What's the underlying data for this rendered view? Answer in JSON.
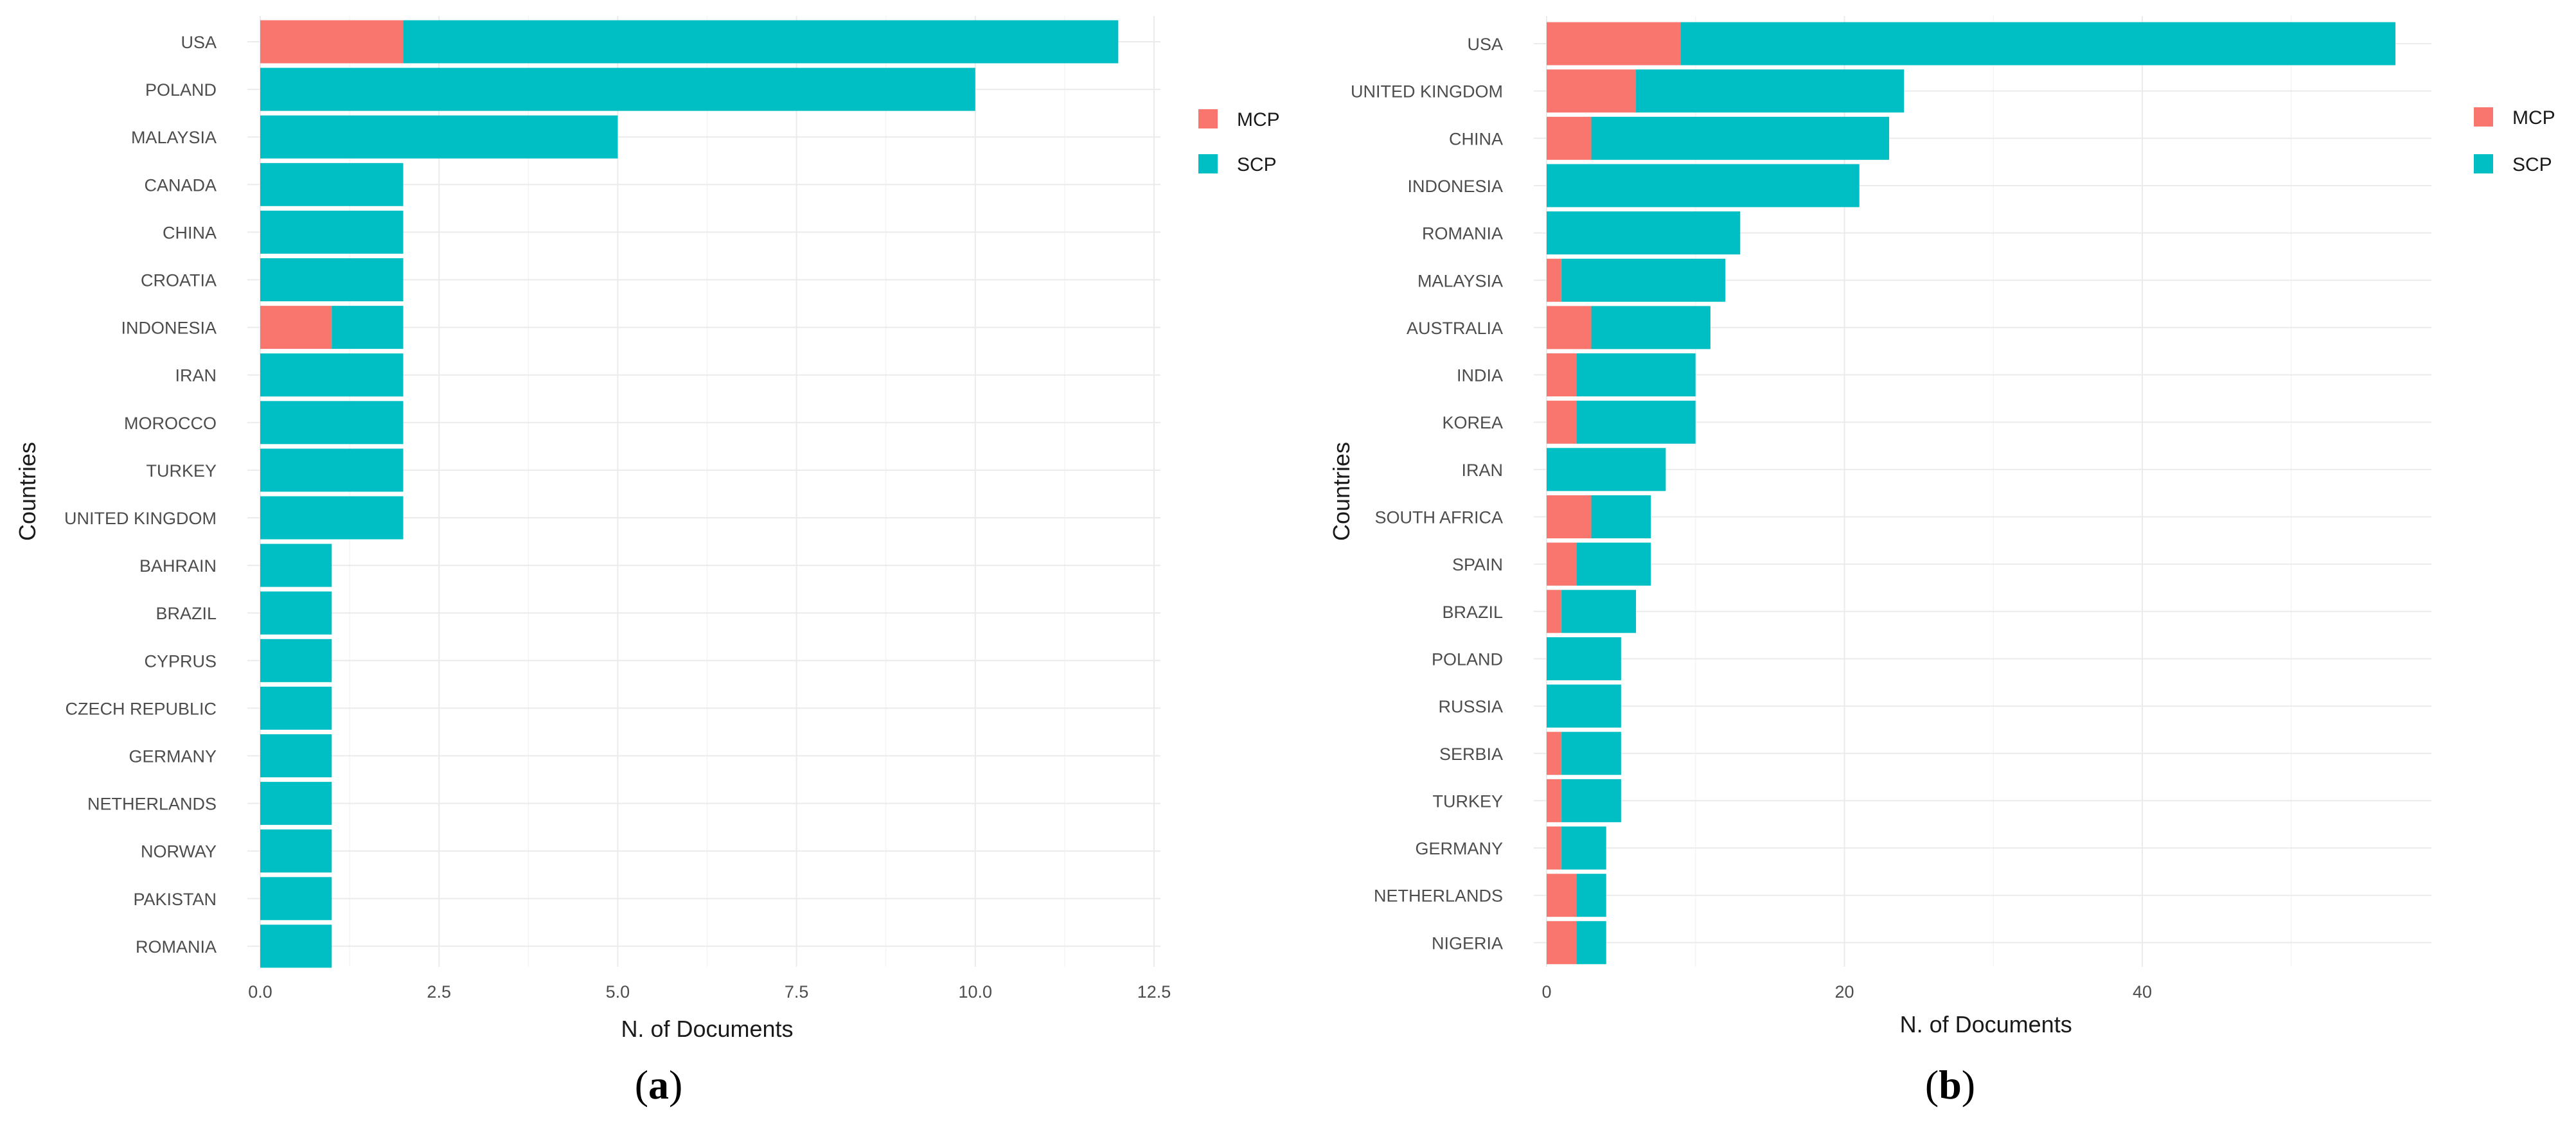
{
  "chart_data": [
    {
      "type": "bar",
      "orientation": "horizontal",
      "stacked": true,
      "panel_label": "a",
      "xlabel": "N. of Documents",
      "ylabel": "Countries",
      "xlim": [
        0,
        12.5
      ],
      "x_ticks": [
        "0.0",
        "2.5",
        "5.0",
        "7.5",
        "10.0",
        "12.5"
      ],
      "grid": true,
      "legend_position": "right",
      "categories": [
        "USA",
        "POLAND",
        "MALAYSIA",
        "CANADA",
        "CHINA",
        "CROATIA",
        "INDONESIA",
        "IRAN",
        "MOROCCO",
        "TURKEY",
        "UNITED KINGDOM",
        "BAHRAIN",
        "BRAZIL",
        "CYPRUS",
        "CZECH REPUBLIC",
        "GERMANY",
        "NETHERLANDS",
        "NORWAY",
        "PAKISTAN",
        "ROMANIA"
      ],
      "series": [
        {
          "name": "MCP",
          "color": "#F8766D",
          "values": [
            2,
            0,
            0,
            0,
            0,
            0,
            1,
            0,
            0,
            0,
            0,
            0,
            0,
            0,
            0,
            0,
            0,
            0,
            0,
            0
          ]
        },
        {
          "name": "SCP",
          "color": "#00BFC4",
          "values": [
            10,
            10,
            5,
            2,
            2,
            2,
            1,
            2,
            2,
            2,
            2,
            1,
            1,
            1,
            1,
            1,
            1,
            1,
            1,
            1
          ]
        }
      ]
    },
    {
      "type": "bar",
      "orientation": "horizontal",
      "stacked": true,
      "panel_label": "b",
      "xlabel": "N. of Documents",
      "ylabel": "Countries",
      "xlim": [
        0,
        59
      ],
      "x_ticks": [
        "0",
        "20",
        "40"
      ],
      "grid": true,
      "legend_position": "right",
      "categories": [
        "USA",
        "UNITED KINGDOM",
        "CHINA",
        "INDONESIA",
        "ROMANIA",
        "MALAYSIA",
        "AUSTRALIA",
        "INDIA",
        "KOREA",
        "IRAN",
        "SOUTH AFRICA",
        "SPAIN",
        "BRAZIL",
        "POLAND",
        "RUSSIA",
        "SERBIA",
        "TURKEY",
        "GERMANY",
        "NETHERLANDS",
        "NIGERIA"
      ],
      "series": [
        {
          "name": "MCP",
          "color": "#F8766D",
          "values": [
            9,
            6,
            3,
            0,
            0,
            1,
            3,
            2,
            2,
            0,
            3,
            2,
            1,
            0,
            0,
            1,
            1,
            1,
            2,
            2
          ]
        },
        {
          "name": "SCP",
          "color": "#00BFC4",
          "values": [
            48,
            18,
            20,
            21,
            13,
            11,
            8,
            8,
            8,
            8,
            4,
            5,
            5,
            5,
            5,
            4,
            4,
            3,
            2,
            2
          ]
        }
      ]
    }
  ]
}
